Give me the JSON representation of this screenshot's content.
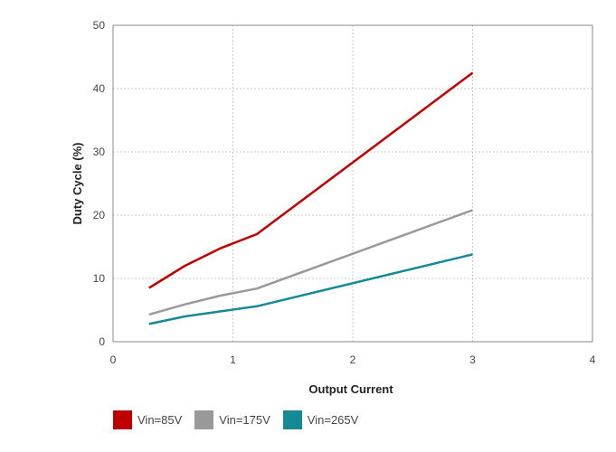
{
  "chart_data": {
    "type": "line",
    "xlabel": "Output Current",
    "ylabel": "Duty Cycle (%)",
    "xlim": [
      0,
      4
    ],
    "ylim": [
      0,
      50
    ],
    "xticks": [
      "0",
      "1",
      "2",
      "3",
      "4"
    ],
    "yticks": [
      "0",
      "10",
      "20",
      "30",
      "40",
      "50"
    ],
    "grid": true,
    "legend_position": "bottom-left",
    "series": [
      {
        "name": "Vin=85V",
        "color": "#c00000",
        "x": [
          0.3,
          0.6,
          0.9,
          1.2,
          3.0
        ],
        "y": [
          8.5,
          12.0,
          14.8,
          17.0,
          42.5
        ]
      },
      {
        "name": "Vin=175V",
        "color": "#999999",
        "x": [
          0.3,
          0.6,
          0.9,
          1.2,
          3.0
        ],
        "y": [
          4.3,
          5.9,
          7.3,
          8.4,
          20.8
        ]
      },
      {
        "name": "Vin=265V",
        "color": "#158a96",
        "x": [
          0.3,
          0.6,
          0.9,
          1.2,
          3.0
        ],
        "y": [
          2.8,
          4.0,
          4.8,
          5.6,
          13.8
        ]
      }
    ]
  }
}
